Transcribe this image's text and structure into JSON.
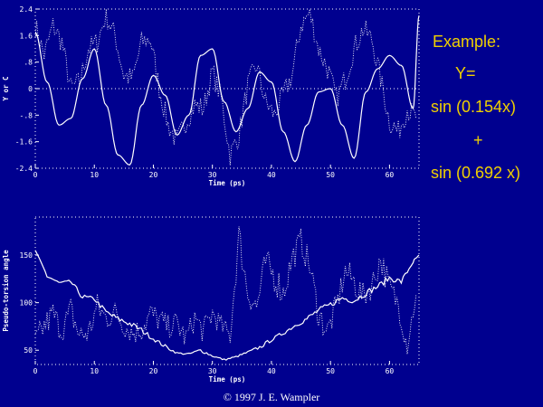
{
  "colors": {
    "background": "#00008f",
    "foreground": "#ffffff",
    "example_text": "#f0d000"
  },
  "example": {
    "title": "Example:",
    "y_eq": "Y=",
    "term1": "sin (0.154x)",
    "plus": "+",
    "term2": "sin (0.692 x)"
  },
  "copyright": "© 1997 J. E. Wampler",
  "chart_data": [
    {
      "type": "line",
      "xlabel": "Time (ps)",
      "ylabel": "Y or C",
      "xlim": [
        0,
        65
      ],
      "ylim": [
        -2.4,
        2.4
      ],
      "x_ticks": [
        0,
        10,
        20,
        30,
        40,
        50,
        60
      ],
      "y_ticks": [
        2.4,
        1.6,
        0.8,
        0,
        -0.8,
        -1.6,
        -2.4
      ],
      "y_tick_labels": [
        "2.4",
        "1.6",
        ".8",
        "0",
        "-.8",
        "-1.6",
        "-2.4"
      ],
      "zero_line": true,
      "series": [
        {
          "style": "solid",
          "x": [
            0,
            2,
            4,
            6,
            8,
            10,
            12,
            14,
            16,
            18,
            20,
            22,
            24,
            26,
            28,
            30,
            32,
            34,
            36,
            38,
            40,
            42,
            44,
            46,
            48,
            50,
            52,
            54,
            56,
            58,
            60,
            62,
            64,
            65
          ],
          "y": [
            1.7,
            0.2,
            -1.1,
            -0.9,
            0.3,
            1.2,
            -0.5,
            -2.0,
            -2.3,
            -0.5,
            0.4,
            -0.2,
            -1.4,
            -0.8,
            1.0,
            1.2,
            -0.4,
            -1.3,
            -0.6,
            0.5,
            0.2,
            -1.3,
            -2.2,
            -1.1,
            -0.1,
            0.0,
            -1.1,
            -2.1,
            -0.1,
            0.6,
            1.0,
            0.7,
            -0.6,
            2.2
          ]
        },
        {
          "style": "dotted",
          "x": [
            0,
            1.5,
            3,
            4.5,
            6,
            7.5,
            9,
            10.5,
            12,
            13.5,
            15,
            16.5,
            18,
            19.5,
            21,
            22.5,
            24,
            25.5,
            27,
            28.5,
            30,
            31.5,
            33,
            34.5,
            36,
            37.5,
            39,
            40.5,
            42,
            43.5,
            45,
            46.5,
            48,
            49.5,
            51,
            52.5,
            54,
            55.5,
            57,
            58.5,
            60,
            61.5,
            63,
            64.5
          ],
          "y": [
            1.9,
            1.0,
            1.9,
            1.4,
            0.0,
            0.2,
            1.2,
            1.4,
            2.2,
            1.6,
            0.4,
            0.3,
            1.4,
            1.5,
            0.0,
            -1.1,
            -1.6,
            -1.0,
            -0.5,
            -0.6,
            0.5,
            -0.3,
            -2.0,
            -1.4,
            0.1,
            0.7,
            -0.4,
            -0.8,
            -0.2,
            0.4,
            1.9,
            2.3,
            1.2,
            0.6,
            -0.3,
            0.3,
            1.2,
            1.8,
            1.5,
            0.3,
            -1.0,
            -1.3,
            -0.6,
            -0.9
          ]
        }
      ]
    },
    {
      "type": "line",
      "xlabel": "Time (ps)",
      "ylabel": "Pseudo-torsion angle",
      "xlim": [
        0,
        65
      ],
      "ylim": [
        35,
        190
      ],
      "x_ticks": [
        0,
        10,
        20,
        30,
        40,
        50,
        60
      ],
      "y_ticks": [
        50,
        100,
        150
      ],
      "series": [
        {
          "style": "solid",
          "x": [
            0,
            2,
            4,
            6,
            8,
            10,
            12,
            14,
            16,
            18,
            20,
            22,
            24,
            26,
            28,
            30,
            32,
            34,
            36,
            38,
            40,
            42,
            44,
            46,
            48,
            50,
            52,
            54,
            56,
            58,
            60,
            62,
            64,
            65
          ],
          "y": [
            155,
            128,
            121,
            122,
            106,
            104,
            90,
            83,
            78,
            71,
            62,
            54,
            47,
            46,
            50,
            44,
            40,
            43,
            48,
            53,
            61,
            68,
            76,
            83,
            92,
            98,
            105,
            102,
            110,
            117,
            126,
            122,
            143,
            150
          ],
          "noise": [
            0,
            3,
            1,
            2,
            3,
            2,
            3,
            3,
            3,
            3,
            2,
            2,
            1,
            1,
            2,
            1,
            1,
            1,
            1,
            2,
            2,
            2,
            2,
            3,
            3,
            3,
            3,
            3,
            3,
            3,
            3,
            3,
            2,
            0
          ]
        },
        {
          "style": "dotted",
          "x": [
            0,
            1.5,
            3,
            4.5,
            6,
            7.5,
            9,
            10.5,
            12,
            13.5,
            15,
            16.5,
            18,
            19.5,
            21,
            22.5,
            24,
            25.5,
            27,
            28.5,
            30,
            31.5,
            33,
            34.5,
            36,
            37.5,
            39,
            40.5,
            42,
            43.5,
            45,
            46.5,
            48,
            49.5,
            51,
            52.5,
            54,
            55.5,
            57,
            58.5,
            60,
            61.5,
            63,
            64.5
          ],
          "y": [
            60,
            75,
            88,
            70,
            92,
            65,
            68,
            96,
            83,
            90,
            76,
            68,
            72,
            88,
            82,
            75,
            78,
            62,
            84,
            70,
            89,
            76,
            65,
            170,
            110,
            95,
            142,
            128,
            110,
            146,
            165,
            138,
            88,
            70,
            96,
            133,
            122,
            106,
            118,
            146,
            116,
            98,
            55,
            108
          ],
          "noise": [
            12,
            14,
            16,
            13,
            15,
            16,
            14,
            15,
            14,
            13,
            12,
            13,
            14,
            15,
            13,
            12,
            14,
            13,
            12,
            14,
            13,
            11,
            12,
            18,
            14,
            15,
            16,
            18,
            17,
            16,
            14,
            15,
            16,
            14,
            15,
            14,
            16,
            15,
            14,
            16,
            15,
            14,
            12,
            10
          ]
        }
      ]
    }
  ]
}
